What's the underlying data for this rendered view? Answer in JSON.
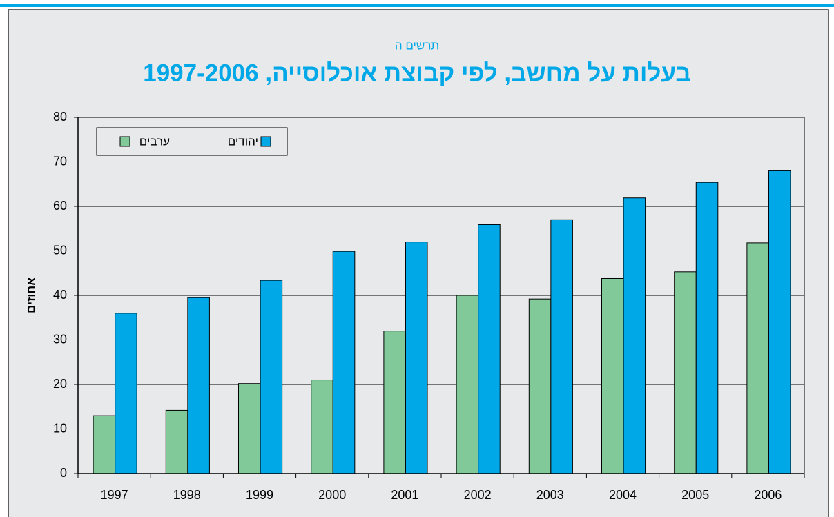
{
  "chart_data": {
    "type": "bar",
    "subtitle": "תרשים ה",
    "title": "בעלות על מחשב, לפי קבוצת אוכלוסייה, 1997-2006",
    "y_label": "אחוזים",
    "categories": [
      "1997",
      "1998",
      "1999",
      "2000",
      "2001",
      "2002",
      "2003",
      "2004",
      "2005",
      "2006"
    ],
    "series": [
      {
        "name": "ערבים",
        "color": "#82c99a",
        "values": [
          13,
          14.2,
          20.2,
          21,
          32,
          40,
          39.2,
          43.8,
          45.3,
          51.8
        ]
      },
      {
        "name": "יהודים",
        "color": "#00a8e8",
        "values": [
          36,
          39.5,
          43.4,
          49.9,
          52,
          55.9,
          57,
          61.9,
          65.4,
          68
        ]
      }
    ],
    "ylim": [
      0,
      80
    ],
    "yticks": [
      0,
      10,
      20,
      30,
      40,
      50,
      60,
      70,
      80
    ],
    "grid": true,
    "legend": "upper left"
  }
}
